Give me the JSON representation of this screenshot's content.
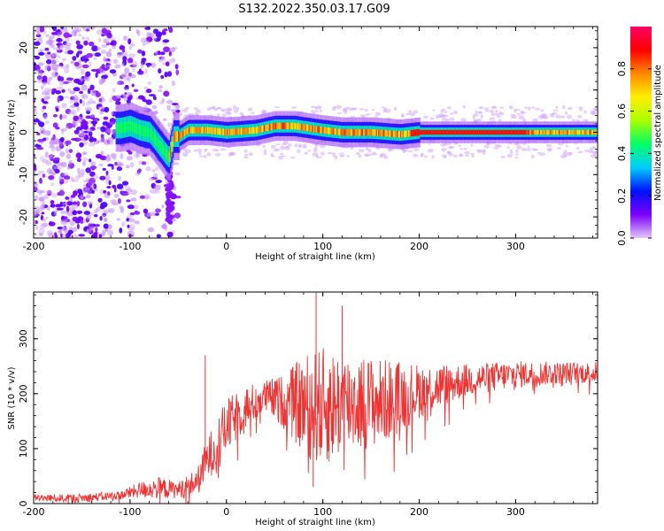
{
  "title": "S132.2022.350.03.17.G09",
  "chart_data": [
    {
      "type": "heatmap",
      "xlabel": "Height of straight line (km)",
      "ylabel": "Frequency (Hz)",
      "xlim": [
        -200,
        385
      ],
      "ylim": [
        -25,
        25
      ],
      "x_ticks": [
        -200,
        -100,
        0,
        100,
        200,
        300
      ],
      "y_ticks": [
        -20,
        -10,
        0,
        10,
        20
      ],
      "grid": false,
      "colorbar": {
        "label": "Normalized spectral amplitude",
        "range": [
          0,
          1
        ],
        "ticks": [
          0.0,
          0.2,
          0.4,
          0.6,
          0.8
        ],
        "colormap": [
          "#e3c8f7",
          "#7b00ff",
          "#0011ff",
          "#00ccff",
          "#00ff66",
          "#aaff00",
          "#ffee00",
          "#ff8800",
          "#ff0000",
          "#ff0066"
        ]
      },
      "ridge": [
        {
          "x": -110,
          "y": 1.0
        },
        {
          "x": -100,
          "y": 1.5
        },
        {
          "x": -90,
          "y": 0.5
        },
        {
          "x": -80,
          "y": 0.0
        },
        {
          "x": -70,
          "y": -3.0
        },
        {
          "x": -60,
          "y": -6.0
        },
        {
          "x": -55,
          "y": -1.0
        },
        {
          "x": -50,
          "y": -1.0
        },
        {
          "x": -40,
          "y": 0.5
        },
        {
          "x": -20,
          "y": 0.5
        },
        {
          "x": 0,
          "y": 0.0
        },
        {
          "x": 30,
          "y": 0.5
        },
        {
          "x": 50,
          "y": 1.5
        },
        {
          "x": 70,
          "y": 1.5
        },
        {
          "x": 100,
          "y": 0.5
        },
        {
          "x": 120,
          "y": 0.0
        },
        {
          "x": 150,
          "y": 0.0
        },
        {
          "x": 180,
          "y": -0.5
        },
        {
          "x": 200,
          "y": 0.0
        },
        {
          "x": 300,
          "y": 0.0
        },
        {
          "x": 385,
          "y": 0.0
        }
      ]
    },
    {
      "type": "line",
      "xlabel": "Height of straight line (km)",
      "ylabel": "SNR (10 * v/v)",
      "xlim": [
        -200,
        385
      ],
      "ylim": [
        0,
        385
      ],
      "x_ticks": [
        -200,
        -100,
        0,
        100,
        200,
        300
      ],
      "y_ticks": [
        0,
        100,
        200,
        300
      ],
      "grid": false,
      "color": "#ee3333",
      "envelope": [
        {
          "x": -200,
          "mean": 10,
          "spread": 6
        },
        {
          "x": -150,
          "mean": 10,
          "spread": 8
        },
        {
          "x": -110,
          "mean": 15,
          "spread": 8
        },
        {
          "x": -90,
          "mean": 25,
          "spread": 15
        },
        {
          "x": -70,
          "mean": 28,
          "spread": 20
        },
        {
          "x": -50,
          "mean": 25,
          "spread": 15
        },
        {
          "x": -30,
          "mean": 40,
          "spread": 25
        },
        {
          "x": -20,
          "mean": 80,
          "spread": 40
        },
        {
          "x": 0,
          "mean": 140,
          "spread": 50
        },
        {
          "x": 20,
          "mean": 175,
          "spread": 40
        },
        {
          "x": 40,
          "mean": 195,
          "spread": 30
        },
        {
          "x": 60,
          "mean": 185,
          "spread": 50
        },
        {
          "x": 80,
          "mean": 180,
          "spread": 90
        },
        {
          "x": 100,
          "mean": 175,
          "spread": 110
        },
        {
          "x": 130,
          "mean": 185,
          "spread": 90
        },
        {
          "x": 160,
          "mean": 185,
          "spread": 80
        },
        {
          "x": 200,
          "mean": 205,
          "spread": 50
        },
        {
          "x": 250,
          "mean": 225,
          "spread": 30
        },
        {
          "x": 300,
          "mean": 235,
          "spread": 25
        },
        {
          "x": 350,
          "mean": 238,
          "spread": 20
        },
        {
          "x": 385,
          "mean": 238,
          "spread": 20
        }
      ],
      "spikes": [
        {
          "x": -22,
          "y": 270
        },
        {
          "x": 93,
          "y": 385
        },
        {
          "x": 90,
          "y": 30
        },
        {
          "x": 120,
          "y": 360
        }
      ]
    }
  ]
}
